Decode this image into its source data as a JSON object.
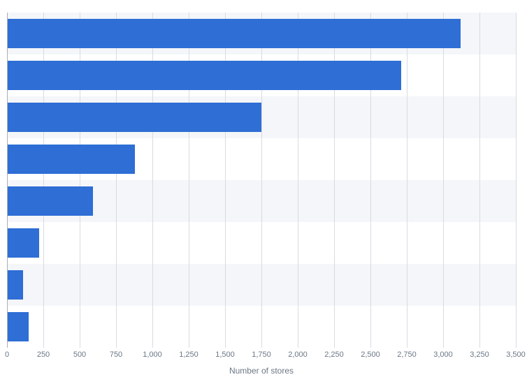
{
  "chart": {
    "type": "bar",
    "orientation": "horizontal",
    "background_color": "#ffffff",
    "stripe_color": "#f4f6f9",
    "grid_color": "#d7dce1",
    "axis_color": "#a8b0b8",
    "bar_color": "#2e6ed5",
    "tick_color": "#6b7785",
    "tick_fontsize": 11,
    "xlabel": "Number of stores",
    "xlabel_fontsize": 12,
    "xlim": [
      0,
      3500
    ],
    "xtick_step": 250,
    "xticks": [
      0,
      250,
      500,
      750,
      1000,
      1250,
      1500,
      1750,
      2000,
      2250,
      2500,
      2750,
      3000,
      3250,
      3500
    ],
    "xtick_labels": [
      "0",
      "250",
      "500",
      "750",
      "1,000",
      "1,250",
      "1,500",
      "1,750",
      "2,000",
      "2,250",
      "2,500",
      "2,750",
      "3,000",
      "3,250",
      "3,500"
    ],
    "num_categories": 8,
    "values": [
      3120,
      2710,
      1750,
      880,
      590,
      220,
      110,
      150
    ],
    "bar_thickness_ratio": 0.7
  }
}
